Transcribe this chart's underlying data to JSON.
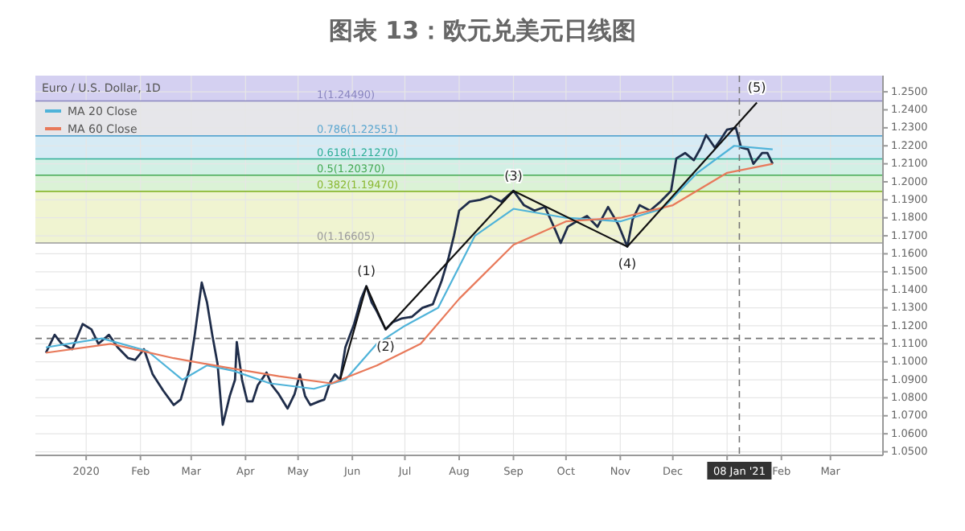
{
  "chart_data": {
    "type": "line",
    "title": "图表 13：欧元兑美元日线图",
    "subtitle": "Euro / U.S. Dollar, 1D",
    "xlim": [
      "2019-12-03",
      "2021-03-31"
    ],
    "xticks": [
      {
        "value": "2020-01-01",
        "label": "2020"
      },
      {
        "value": "2020-02-01",
        "label": "Feb"
      },
      {
        "value": "2020-03-01",
        "label": "Mar"
      },
      {
        "value": "2020-04-01",
        "label": "Apr"
      },
      {
        "value": "2020-05-01",
        "label": "May"
      },
      {
        "value": "2020-06-01",
        "label": "Jun"
      },
      {
        "value": "2020-07-01",
        "label": "Jul"
      },
      {
        "value": "2020-08-01",
        "label": "Aug"
      },
      {
        "value": "2020-09-01",
        "label": "Sep"
      },
      {
        "value": "2020-10-01",
        "label": "Oct"
      },
      {
        "value": "2020-11-01",
        "label": "Nov"
      },
      {
        "value": "2020-12-01",
        "label": "Dec"
      },
      {
        "value": "2021-01-01",
        "label": null
      },
      {
        "value": "2021-02-01",
        "label": "Feb"
      },
      {
        "value": "2021-03-01",
        "label": "Mar"
      }
    ],
    "ylim": [
      1.048,
      1.259
    ],
    "yticks": [
      {
        "value": 1.05,
        "label": "1.0500"
      },
      {
        "value": 1.06,
        "label": "1.0600"
      },
      {
        "value": 1.07,
        "label": "1.0700"
      },
      {
        "value": 1.08,
        "label": "1.0800"
      },
      {
        "value": 1.09,
        "label": "1.0900"
      },
      {
        "value": 1.1,
        "label": "1.1000"
      },
      {
        "value": 1.11,
        "label": "1.1100"
      },
      {
        "value": 1.12,
        "label": "1.1200"
      },
      {
        "value": 1.13,
        "label": "1.1300"
      },
      {
        "value": 1.14,
        "label": "1.1400"
      },
      {
        "value": 1.15,
        "label": "1.1500"
      },
      {
        "value": 1.16,
        "label": "1.1600"
      },
      {
        "value": 1.17,
        "label": "1.1700"
      },
      {
        "value": 1.18,
        "label": "1.1800"
      },
      {
        "value": 1.19,
        "label": "1.1900"
      },
      {
        "value": 1.2,
        "label": "1.2000"
      },
      {
        "value": 1.21,
        "label": "1.2100"
      },
      {
        "value": 1.22,
        "label": "1.2200"
      },
      {
        "value": 1.23,
        "label": "1.2300"
      },
      {
        "value": 1.24,
        "label": "1.2400"
      },
      {
        "value": 1.25,
        "label": "1.2500"
      }
    ],
    "grid": true,
    "legend": "top left",
    "bands": [
      {
        "axis": "y",
        "from": 1.2449,
        "to": 1.259,
        "color": "#cfcbef"
      },
      {
        "axis": "y",
        "from": 1.22551,
        "to": 1.2449,
        "color": "#e3e3e8"
      },
      {
        "axis": "y",
        "from": 1.2127,
        "to": 1.22551,
        "color": "#d2e9f4"
      },
      {
        "axis": "y",
        "from": 1.2037,
        "to": 1.2127,
        "color": "#cdeee2"
      },
      {
        "axis": "y",
        "from": 1.1947,
        "to": 1.2037,
        "color": "#d7f1d2"
      },
      {
        "axis": "y",
        "from": 1.16605,
        "to": 1.1947,
        "color": "#eef3cc"
      }
    ],
    "ref_lines": [
      {
        "axis": "y",
        "value": 1.2449,
        "label": "1(1.24490)",
        "color": "#8a86c0"
      },
      {
        "axis": "y",
        "value": 1.22551,
        "label": "0.786(1.22551)",
        "color": "#5aa6d0"
      },
      {
        "axis": "y",
        "value": 1.2127,
        "label": "0.618(1.21270)",
        "color": "#2fae96"
      },
      {
        "axis": "y",
        "value": 1.2037,
        "label": "0.5(1.20370)",
        "color": "#43a852"
      },
      {
        "axis": "y",
        "value": 1.1947,
        "label": "0.382(1.19470)",
        "color": "#8ab832"
      },
      {
        "axis": "y",
        "value": 1.16605,
        "label": "0(1.16605)",
        "color": "#9a9a9a"
      },
      {
        "axis": "x",
        "value": "2021-01-08",
        "label": "08 Jan '21",
        "color": "#777777",
        "line_style": "dashed"
      },
      {
        "axis": "y",
        "value": 1.113,
        "label": null,
        "color": "#777777",
        "line_style": "dashed"
      }
    ],
    "series": [
      {
        "color": "#1f2d4a",
        "x": [
          "2019-12-09",
          "2019-12-14",
          "2019-12-18",
          "2019-12-24",
          "2019-12-30",
          "2020-01-04",
          "2020-01-08",
          "2020-01-14",
          "2020-01-19",
          "2020-01-25",
          "2020-01-29",
          "2020-02-03",
          "2020-02-08",
          "2020-02-14",
          "2020-02-20",
          "2020-02-24",
          "2020-02-29",
          "2020-03-03",
          "2020-03-07",
          "2020-03-10",
          "2020-03-13",
          "2020-03-16",
          "2020-03-19",
          "2020-03-23",
          "2020-03-26",
          "2020-03-27",
          "2020-03-30",
          "2020-04-02",
          "2020-04-05",
          "2020-04-08",
          "2020-04-13",
          "2020-04-16",
          "2020-04-20",
          "2020-04-25",
          "2020-04-29",
          "2020-05-02",
          "2020-05-05",
          "2020-05-08",
          "2020-05-13",
          "2020-05-16",
          "2020-05-19",
          "2020-05-22",
          "2020-05-25",
          "2020-05-28",
          "2020-06-02",
          "2020-06-06",
          "2020-06-09",
          "2020-06-12",
          "2020-06-15",
          "2020-06-20",
          "2020-06-24",
          "2020-06-29",
          "2020-07-05",
          "2020-07-11",
          "2020-07-17",
          "2020-07-22",
          "2020-07-26",
          "2020-07-29",
          "2020-08-01",
          "2020-08-07",
          "2020-08-13",
          "2020-08-19",
          "2020-08-25",
          "2020-09-01",
          "2020-09-07",
          "2020-09-13",
          "2020-09-19",
          "2020-09-25",
          "2020-09-28",
          "2020-10-02",
          "2020-10-07",
          "2020-10-13",
          "2020-10-19",
          "2020-10-25",
          "2020-10-31",
          "2020-11-05",
          "2020-11-08",
          "2020-11-12",
          "2020-11-18",
          "2020-11-24",
          "2020-11-30",
          "2020-12-03",
          "2020-12-08",
          "2020-12-13",
          "2020-12-17",
          "2020-12-20",
          "2020-12-25",
          "2020-12-28",
          "2021-01-01",
          "2021-01-06",
          "2021-01-09",
          "2021-01-13",
          "2021-01-16",
          "2021-01-21",
          "2021-01-24",
          "2021-01-27"
        ],
        "values": [
          1.105,
          1.115,
          1.11,
          1.107,
          1.121,
          1.118,
          1.11,
          1.115,
          1.108,
          1.102,
          1.101,
          1.107,
          1.093,
          1.084,
          1.076,
          1.079,
          1.096,
          1.115,
          1.144,
          1.133,
          1.115,
          1.099,
          1.065,
          1.081,
          1.09,
          1.111,
          1.09,
          1.078,
          1.078,
          1.087,
          1.094,
          1.087,
          1.082,
          1.074,
          1.082,
          1.093,
          1.081,
          1.076,
          1.078,
          1.079,
          1.088,
          1.093,
          1.09,
          1.108,
          1.121,
          1.135,
          1.142,
          1.133,
          1.128,
          1.118,
          1.122,
          1.124,
          1.125,
          1.13,
          1.132,
          1.145,
          1.158,
          1.17,
          1.184,
          1.189,
          1.19,
          1.192,
          1.189,
          1.195,
          1.187,
          1.184,
          1.186,
          1.173,
          1.166,
          1.175,
          1.178,
          1.181,
          1.175,
          1.186,
          1.176,
          1.164,
          1.179,
          1.187,
          1.184,
          1.189,
          1.195,
          1.213,
          1.216,
          1.212,
          1.219,
          1.226,
          1.219,
          1.223,
          1.229,
          1.23,
          1.219,
          1.218,
          1.21,
          1.216,
          1.216,
          1.21
        ]
      },
      {
        "name": "MA 20 Close",
        "color": "#4fb3d9",
        "x": [
          "2019-12-09",
          "2020-01-10",
          "2020-02-05",
          "2020-02-25",
          "2020-03-10",
          "2020-03-25",
          "2020-04-15",
          "2020-05-10",
          "2020-05-28",
          "2020-06-15",
          "2020-07-01",
          "2020-07-20",
          "2020-08-10",
          "2020-09-01",
          "2020-10-01",
          "2020-11-01",
          "2020-11-25",
          "2020-12-15",
          "2021-01-05",
          "2021-01-27"
        ],
        "values": [
          1.108,
          1.113,
          1.106,
          1.09,
          1.098,
          1.095,
          1.088,
          1.085,
          1.09,
          1.11,
          1.12,
          1.13,
          1.17,
          1.185,
          1.18,
          1.178,
          1.185,
          1.205,
          1.22,
          1.218
        ]
      },
      {
        "name": "MA 60 Close",
        "color": "#e8795a",
        "x": [
          "2019-12-09",
          "2020-01-15",
          "2020-02-20",
          "2020-03-20",
          "2020-04-20",
          "2020-05-20",
          "2020-06-15",
          "2020-07-10",
          "2020-08-01",
          "2020-09-01",
          "2020-10-01",
          "2020-11-01",
          "2020-12-01",
          "2021-01-01",
          "2021-01-27"
        ],
        "values": [
          1.105,
          1.11,
          1.102,
          1.097,
          1.092,
          1.088,
          1.098,
          1.11,
          1.135,
          1.165,
          1.178,
          1.18,
          1.187,
          1.205,
          1.21
        ]
      },
      {
        "color": "#111111",
        "x": [
          "2020-05-25",
          "2020-06-09",
          "2020-06-20",
          "2020-09-01",
          "2020-11-05",
          "2021-01-18"
        ],
        "values": [
          1.09,
          1.142,
          1.118,
          1.195,
          1.164,
          1.244
        ]
      }
    ],
    "annotations": [
      {
        "text": "(1)",
        "x": "2020-06-09",
        "y": 1.142
      },
      {
        "text": "(2)",
        "x": "2020-06-20",
        "y": 1.118
      },
      {
        "text": "(3)",
        "x": "2020-09-01",
        "y": 1.195
      },
      {
        "text": "(4)",
        "x": "2020-11-05",
        "y": 1.164
      },
      {
        "text": "(5)",
        "x": "2021-01-18",
        "y": 1.244
      }
    ]
  }
}
